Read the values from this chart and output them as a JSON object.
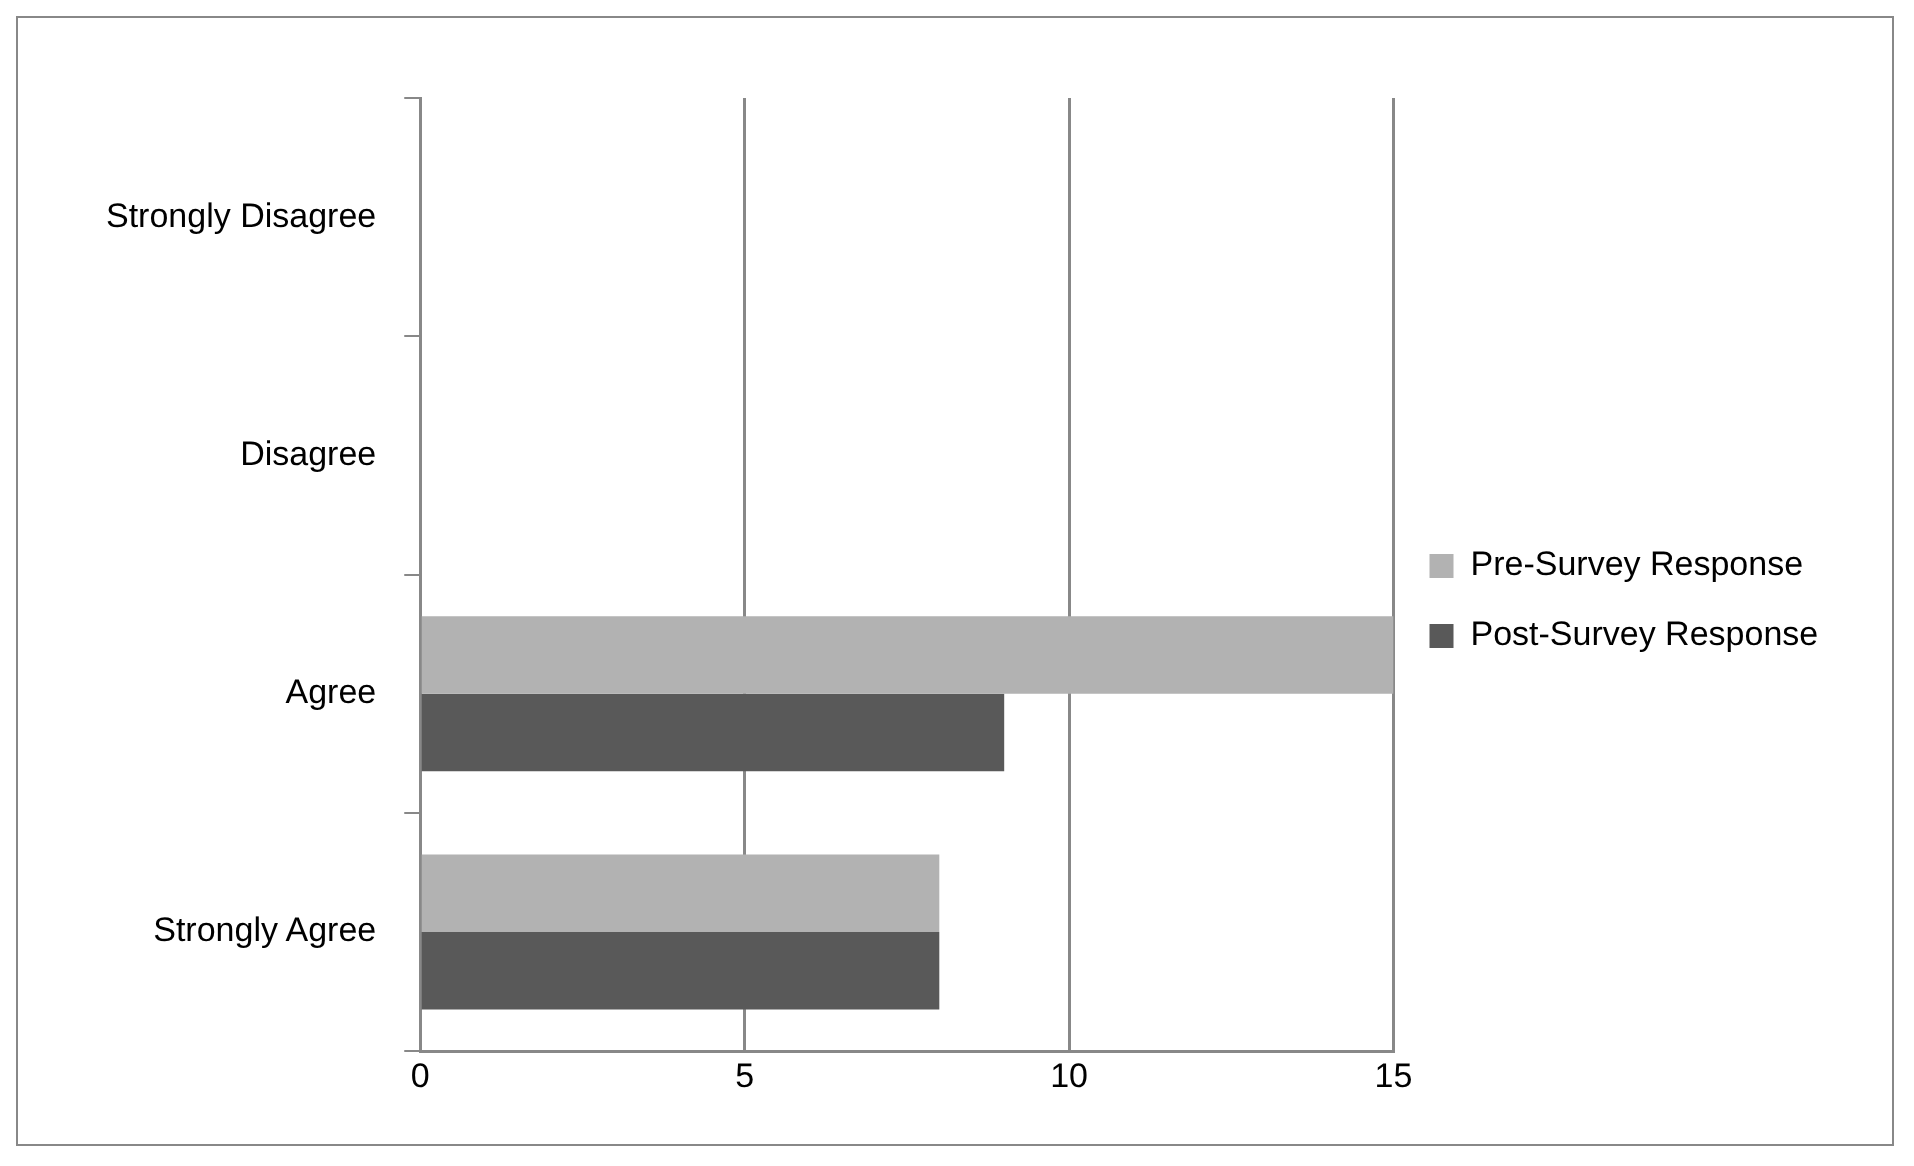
{
  "chart_data": {
    "type": "bar",
    "orientation": "horizontal",
    "categories": [
      "Strongly Disagree",
      "Disagree",
      "Agree",
      "Strongly Agree"
    ],
    "series": [
      {
        "name": "Pre-Survey Response",
        "color": "#b2b2b2",
        "values": [
          0,
          0,
          15,
          8
        ]
      },
      {
        "name": "Post-Survey Response",
        "color": "#595959",
        "values": [
          0,
          0,
          9,
          8
        ]
      }
    ],
    "xlim": [
      0,
      15
    ],
    "xticks": [
      0,
      5,
      10,
      15
    ],
    "grid": "x",
    "legend": "right"
  }
}
